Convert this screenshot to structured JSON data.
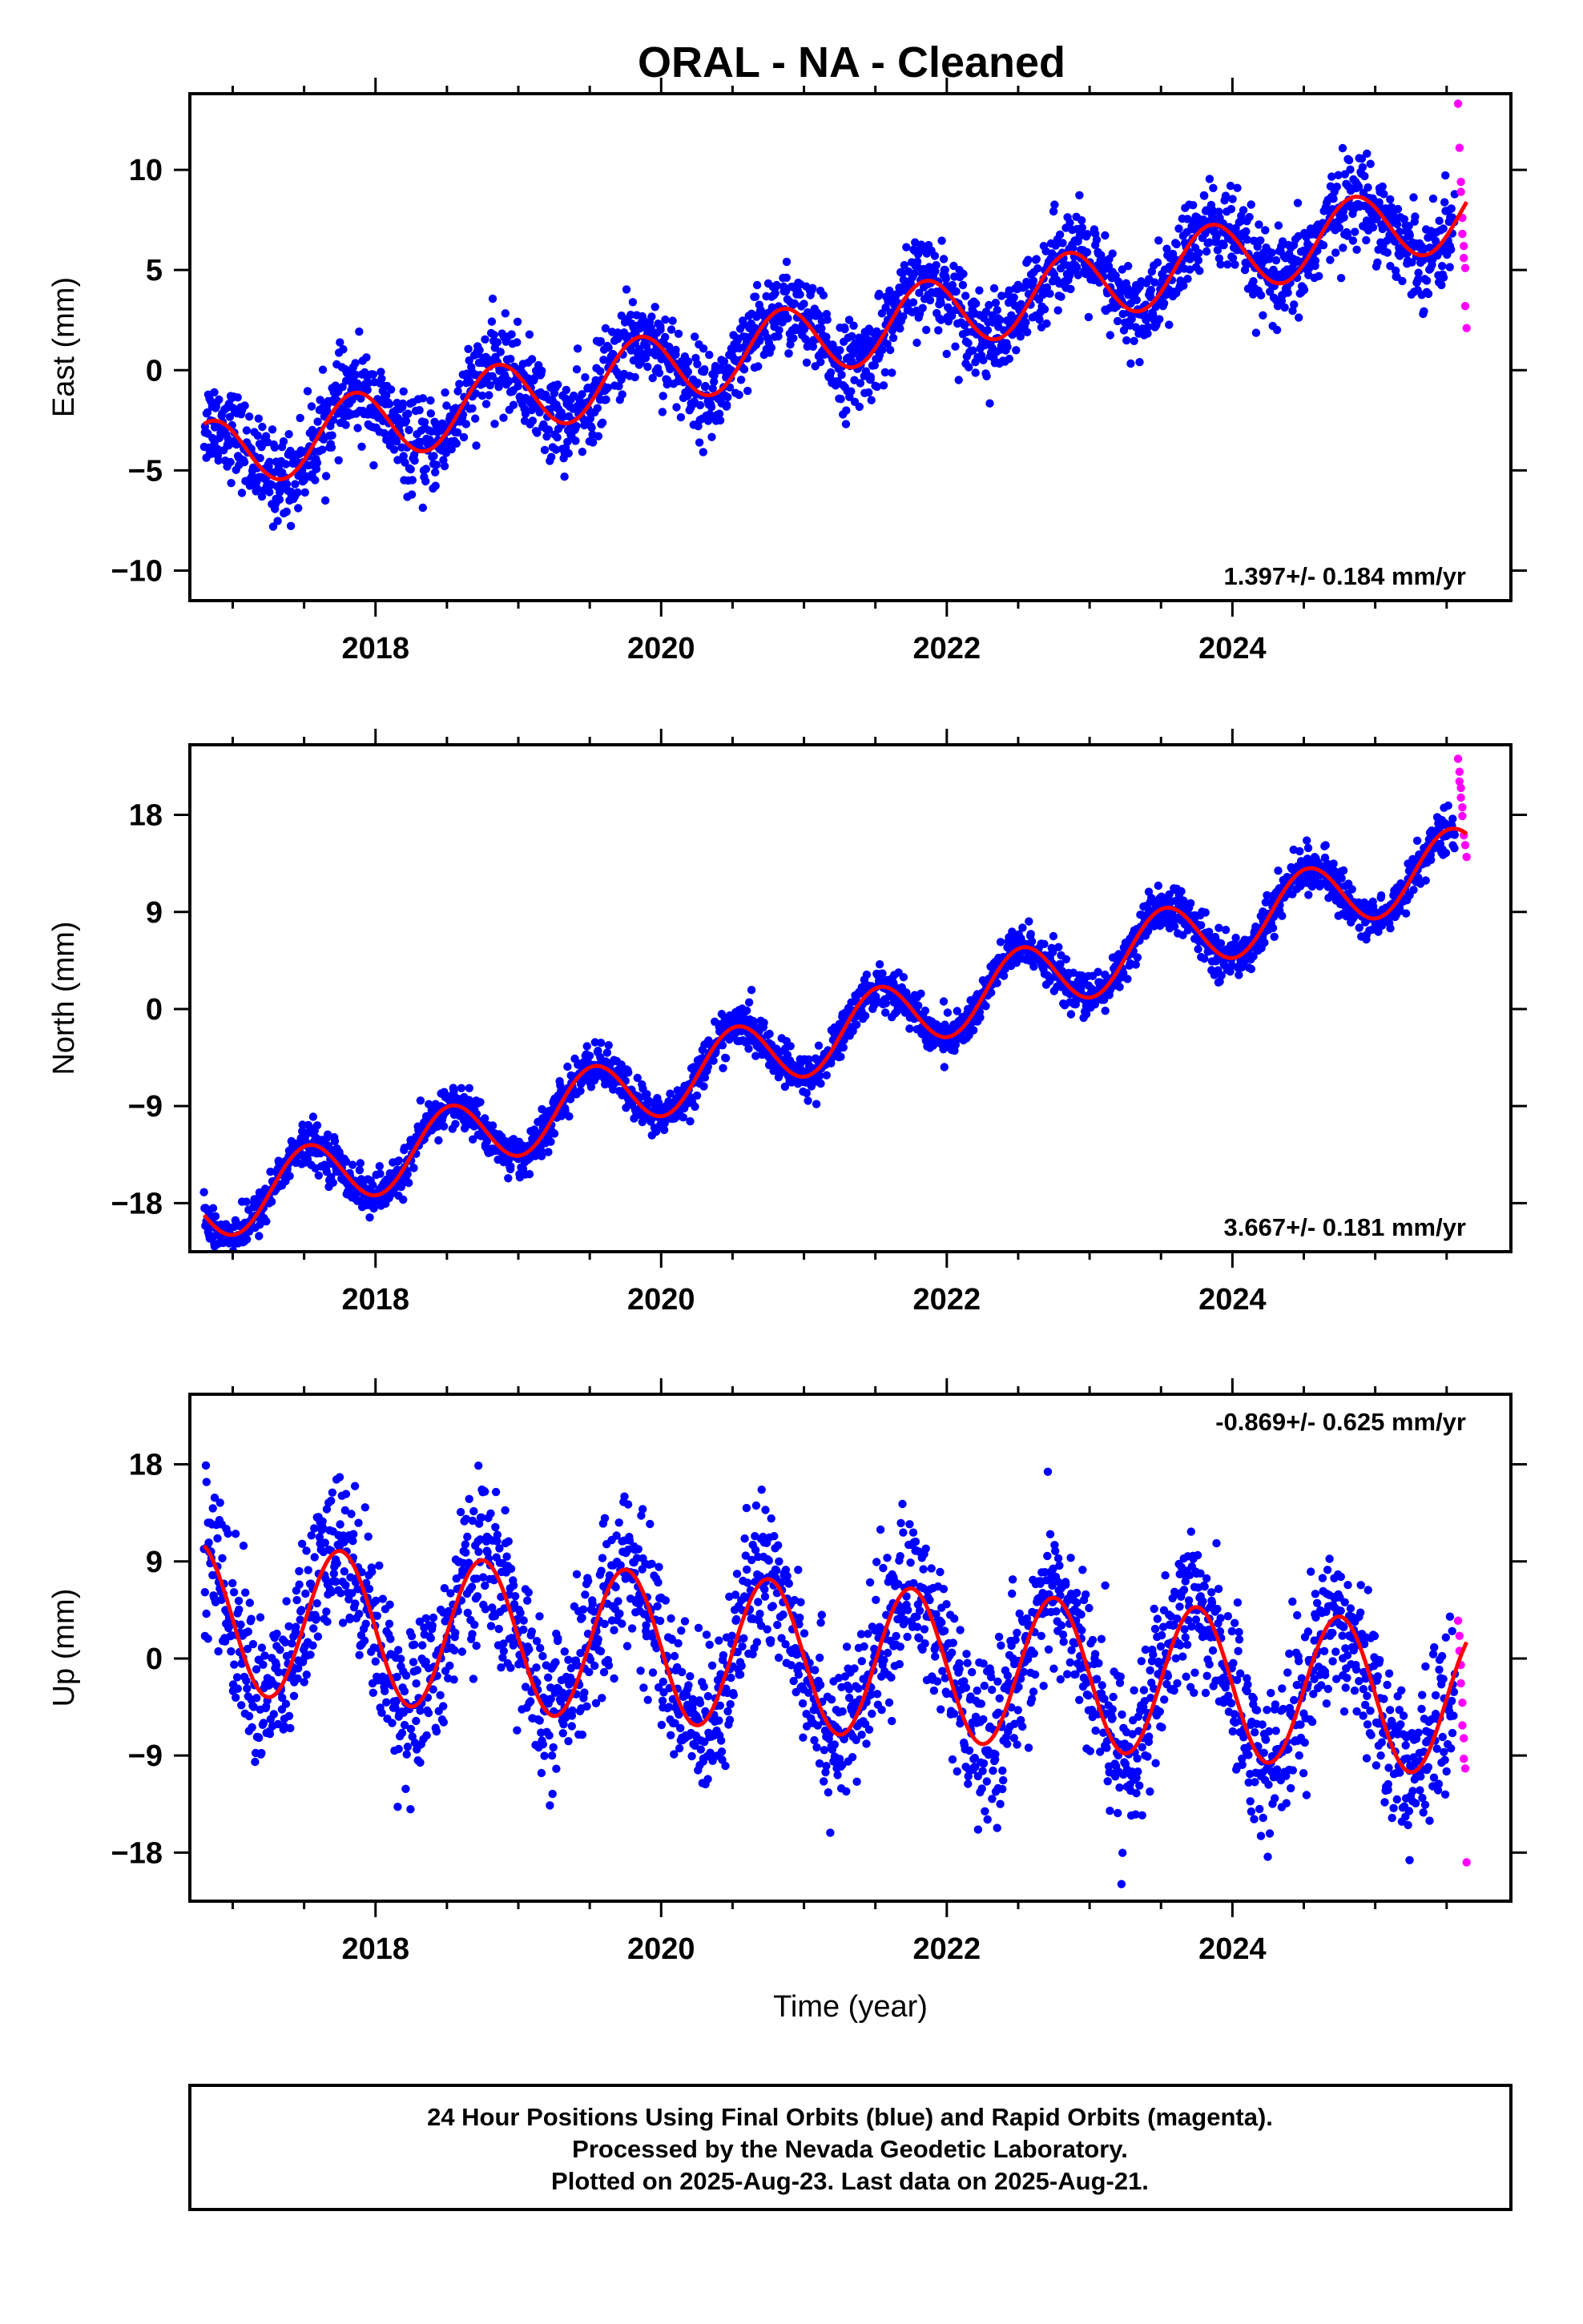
{
  "title": "ORAL  - NA - Cleaned",
  "colors": {
    "final": "#0000ff",
    "rapid": "#ff00ff",
    "model": "#ff0000",
    "frame": "#000000"
  },
  "footer": {
    "line1": "24 Hour Positions Using Final Orbits (blue) and Rapid Orbits (magenta).",
    "line2": "Processed by the Nevada Geodetic Laboratory.",
    "line3": "Plotted on 2025-Aug-23. Last data on 2025-Aug-21."
  },
  "chart_data": [
    {
      "type": "scatter",
      "component": "east",
      "ylabel": "East (mm)",
      "xlabel": "",
      "rate_label": "1.397+/- 0.184 mm/yr",
      "rate_position": "bottom-right",
      "xlim": [
        2016.7,
        2025.95
      ],
      "ylim": [
        -11.5,
        13.8
      ],
      "xticks": [
        2018,
        2020,
        2022,
        2024
      ],
      "xtick_labels": [
        "2018",
        "2020",
        "2022",
        "2024"
      ],
      "yticks": [
        -10,
        -5,
        0,
        5,
        10
      ],
      "ytick_labels": [
        "−10",
        "−5",
        "0",
        "5",
        "10"
      ],
      "data_start": 2016.8,
      "data_end": 2025.64,
      "model": {
        "offset": -4.4,
        "trend": 1.397,
        "annual_amp": 1.8,
        "annual_peak": 2016.85
      },
      "noise_sd": 1.1,
      "n_points": 2400,
      "rapid_points": [
        [
          2025.58,
          13.3
        ],
        [
          2025.59,
          11.1
        ],
        [
          2025.6,
          9.4
        ],
        [
          2025.6,
          8.9
        ],
        [
          2025.61,
          7.6
        ],
        [
          2025.61,
          6.8
        ],
        [
          2025.62,
          6.2
        ],
        [
          2025.62,
          5.6
        ],
        [
          2025.63,
          5.1
        ],
        [
          2025.63,
          3.2
        ],
        [
          2025.64,
          2.1
        ]
      ]
    },
    {
      "type": "scatter",
      "component": "north",
      "ylabel": "North (mm)",
      "xlabel": "",
      "rate_label": "3.667+/- 0.181 mm/yr",
      "rate_position": "bottom-right",
      "xlim": [
        2016.7,
        2025.95
      ],
      "ylim": [
        -22.5,
        24.5
      ],
      "xticks": [
        2018,
        2020,
        2022,
        2024
      ],
      "xtick_labels": [
        "2018",
        "2020",
        "2022",
        "2024"
      ],
      "yticks": [
        -18,
        -9,
        0,
        9,
        18
      ],
      "ytick_labels": [
        "−18",
        "−9",
        "0",
        "9",
        "18"
      ],
      "data_start": 2016.8,
      "data_end": 2025.64,
      "model": {
        "offset": -18.5,
        "trend": 3.667,
        "annual_amp": 3.2,
        "annual_peak": 2017.52
      },
      "noise_sd": 1.0,
      "n_points": 2400,
      "rapid_points": [
        [
          2025.58,
          23.2
        ],
        [
          2025.59,
          22.0
        ],
        [
          2025.59,
          21.1
        ],
        [
          2025.6,
          20.5
        ],
        [
          2025.6,
          19.6
        ],
        [
          2025.61,
          18.7
        ],
        [
          2025.61,
          17.9
        ],
        [
          2025.62,
          16.1
        ],
        [
          2025.63,
          15.2
        ],
        [
          2025.64,
          14.1
        ]
      ]
    },
    {
      "type": "scatter",
      "component": "up",
      "ylabel": "Up (mm)",
      "xlabel": "Time (year)",
      "rate_label": "-0.869+/- 0.625 mm/yr",
      "rate_position": "top-right",
      "xlim": [
        2016.7,
        2025.95
      ],
      "ylim": [
        -22.5,
        24.5
      ],
      "xticks": [
        2018,
        2020,
        2022,
        2024
      ],
      "xtick_labels": [
        "2018",
        "2020",
        "2022",
        "2024"
      ],
      "yticks": [
        -18,
        -9,
        0,
        9,
        18
      ],
      "ytick_labels": [
        "−18",
        "−9",
        "0",
        "9",
        "18"
      ],
      "data_start": 2016.8,
      "data_end": 2025.64,
      "model": {
        "offset": 3.8,
        "trend": -0.869,
        "annual_amp": 7.0,
        "annual_peak": 2016.75
      },
      "noise_sd": 3.6,
      "n_points": 2400,
      "rapid_points": [
        [
          2025.58,
          3.5
        ],
        [
          2025.59,
          2.1
        ],
        [
          2025.59,
          0.7
        ],
        [
          2025.6,
          -0.6
        ],
        [
          2025.6,
          -2.3
        ],
        [
          2025.61,
          -4.1
        ],
        [
          2025.61,
          -6.2
        ],
        [
          2025.62,
          -7.4
        ],
        [
          2025.62,
          -9.3
        ],
        [
          2025.63,
          -10.2
        ],
        [
          2025.64,
          -18.9
        ]
      ]
    }
  ]
}
